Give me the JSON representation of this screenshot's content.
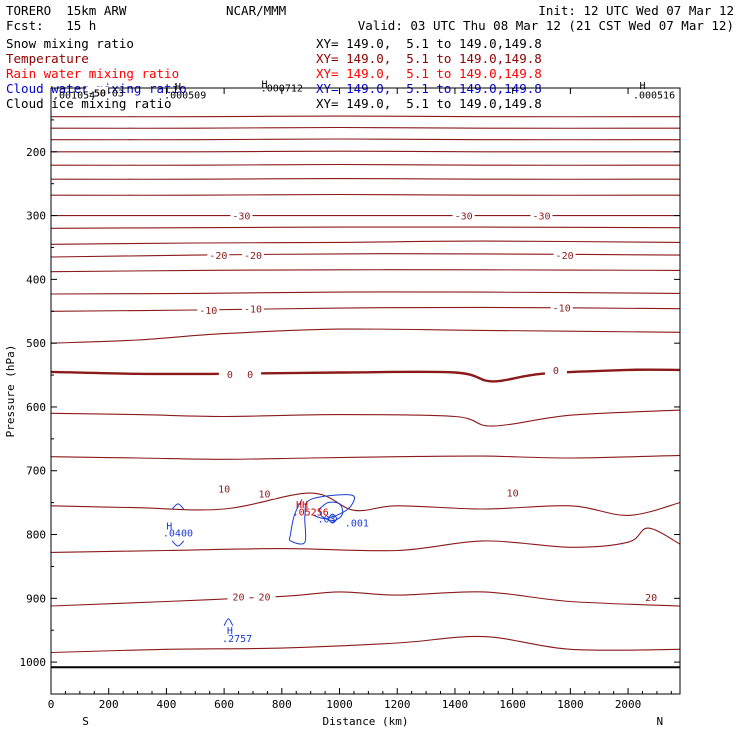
{
  "header": {
    "model": "TORERO  15km ARW",
    "fcst": "Fcst:   15 h",
    "center": "NCAR/MMM",
    "init": "Init: 12 UTC Wed 07 Mar 12",
    "valid": "Valid: 03 UTC Thu 08 Mar 12 (21 CST Wed 07 Mar 12)"
  },
  "fields": [
    {
      "name": "Snow mixing ratio",
      "xy": "XY= 149.0,  5.1 to 149.0,149.8",
      "color": "#000000"
    },
    {
      "name": "Temperature",
      "xy": "XY= 149.0,  5.1 to 149.0,149.8",
      "color": "#8b0000"
    },
    {
      "name": "Rain water mixing ratio",
      "xy": "XY= 149.0,  5.1 to 149.0,149.8",
      "color": "#ff0000"
    },
    {
      "name": "Cloud water mixing ratio",
      "xy": "XY= 149.0,  5.1 to 149.0,149.8",
      "color": "#0000cc"
    },
    {
      "name": "Cloud ice mixing ratio",
      "xy": "XY= 149.0,  5.1 to 149.0,149.8",
      "color": "#000000"
    }
  ],
  "colors": {
    "temperature": "#8b1a1a",
    "cloud_water": "#1a3cd6",
    "rain": "#d00000",
    "ground": "#000000"
  },
  "chart_data": {
    "type": "line",
    "title": "",
    "xlabel": "Distance (km)",
    "ylabel": "Pressure (hPa)",
    "xlim": [
      0,
      2180
    ],
    "ylim": [
      1050,
      100
    ],
    "x_ticks": [
      0,
      200,
      400,
      600,
      800,
      1000,
      1200,
      1400,
      1600,
      1800,
      2000
    ],
    "y_ticks": [
      200,
      300,
      400,
      500,
      600,
      700,
      800,
      900,
      1000
    ],
    "left_end_label": "S",
    "right_end_label": "N",
    "temperature_isotherms": [
      {
        "value": -50,
        "x": [
          0,
          500,
          1000,
          1500,
          2180
        ],
        "p": [
          145,
          145,
          144,
          145,
          145
        ]
      },
      {
        "value": -50,
        "x": [
          0,
          500,
          1000,
          1500,
          2180
        ],
        "p": [
          163,
          163,
          162,
          163,
          163
        ]
      },
      {
        "value": -50,
        "x": [
          0,
          500,
          1000,
          1500,
          2180
        ],
        "p": [
          181,
          181,
          180,
          181,
          181
        ]
      },
      {
        "value": -50,
        "x": [
          0,
          500,
          1000,
          1500,
          2180
        ],
        "p": [
          200,
          200,
          199,
          200,
          200
        ]
      },
      {
        "value": -40,
        "x": [
          0,
          500,
          1000,
          1500,
          2180
        ],
        "p": [
          221,
          221,
          220,
          221,
          221
        ]
      },
      {
        "value": -40,
        "x": [
          0,
          500,
          1000,
          1500,
          2180
        ],
        "p": [
          243,
          243,
          242,
          243,
          243
        ]
      },
      {
        "value": -40,
        "x": [
          0,
          500,
          1000,
          1500,
          2180
        ],
        "p": [
          268,
          268,
          267,
          268,
          268
        ]
      },
      {
        "value": -30,
        "x": [
          0,
          500,
          1000,
          1500,
          2180
        ],
        "p": [
          300,
          300,
          300,
          300,
          300
        ]
      },
      {
        "value": -30,
        "x": [
          0,
          500,
          1000,
          1500,
          2180
        ],
        "p": [
          320,
          319,
          318,
          318,
          319
        ]
      },
      {
        "value": -20,
        "x": [
          0,
          500,
          1000,
          1500,
          2180
        ],
        "p": [
          345,
          343,
          342,
          340,
          342
        ]
      },
      {
        "value": -20,
        "x": [
          0,
          500,
          1000,
          1500,
          2180
        ],
        "p": [
          365,
          362,
          360,
          360,
          362
        ]
      },
      {
        "value": -20,
        "x": [
          0,
          500,
          1000,
          1500,
          2180
        ],
        "p": [
          388,
          386,
          385,
          385,
          386
        ]
      },
      {
        "value": -10,
        "x": [
          0,
          500,
          1000,
          1500,
          2180
        ],
        "p": [
          423,
          422,
          420,
          420,
          422
        ]
      },
      {
        "value": -10,
        "x": [
          0,
          500,
          1000,
          1500,
          2180
        ],
        "p": [
          450,
          448,
          445,
          444,
          446
        ]
      },
      {
        "value": -10,
        "x": [
          0,
          300,
          600,
          1000,
          1500,
          2180
        ],
        "p": [
          500,
          495,
          485,
          478,
          480,
          483
        ]
      },
      {
        "value": 0,
        "x": [
          0,
          300,
          600,
          1000,
          1400,
          1530,
          1700,
          2000,
          2180
        ],
        "p": [
          545,
          548,
          548,
          546,
          546,
          560,
          548,
          542,
          542
        ]
      },
      {
        "value": 0,
        "x": [
          0,
          300,
          600,
          1000,
          1400,
          1530,
          1800,
          2180
        ],
        "p": [
          610,
          612,
          615,
          612,
          615,
          630,
          613,
          605
        ]
      },
      {
        "value": 10,
        "x": [
          0,
          300,
          600,
          900,
          1200,
          1500,
          1800,
          2180
        ],
        "p": [
          678,
          680,
          682,
          680,
          678,
          677,
          680,
          676
        ]
      },
      {
        "value": 10,
        "x": [
          0,
          300,
          600,
          900,
          1050,
          1200,
          1500,
          1800,
          2000,
          2180
        ],
        "p": [
          755,
          758,
          760,
          735,
          762,
          755,
          760,
          755,
          770,
          750
        ]
      },
      {
        "value": 20,
        "x": [
          0,
          400,
          800,
          1200,
          1500,
          1800,
          2000,
          2070,
          2180
        ],
        "p": [
          828,
          825,
          822,
          825,
          810,
          820,
          812,
          790,
          815
        ]
      },
      {
        "value": 20,
        "x": [
          0,
          400,
          800,
          1000,
          1200,
          1500,
          1800,
          2180
        ],
        "p": [
          912,
          905,
          897,
          890,
          895,
          890,
          905,
          912
        ]
      },
      {
        "value": 20,
        "x": [
          0,
          400,
          800,
          1200,
          1500,
          1800,
          2180
        ],
        "p": [
          985,
          980,
          978,
          970,
          960,
          980,
          980
        ]
      }
    ],
    "temperature_labels": [
      {
        "text": "-30",
        "x": 660,
        "p": 300
      },
      {
        "text": "-30",
        "x": 1430,
        "p": 300
      },
      {
        "text": "-30",
        "x": 1700,
        "p": 300
      },
      {
        "text": "-20",
        "x": 580,
        "p": 362
      },
      {
        "text": "-20",
        "x": 700,
        "p": 362
      },
      {
        "text": "-20",
        "x": 1780,
        "p": 362
      },
      {
        "text": "-10",
        "x": 545,
        "p": 448
      },
      {
        "text": "-10",
        "x": 700,
        "p": 446
      },
      {
        "text": "-10",
        "x": 1770,
        "p": 444
      },
      {
        "text": "0",
        "x": 620,
        "p": 548
      },
      {
        "text": "0",
        "x": 690,
        "p": 548
      },
      {
        "text": "0",
        "x": 1750,
        "p": 542
      },
      {
        "text": "10",
        "x": 600,
        "p": 728
      },
      {
        "text": "10",
        "x": 740,
        "p": 736
      },
      {
        "text": "10",
        "x": 1600,
        "p": 734
      },
      {
        "text": "20",
        "x": 650,
        "p": 897
      },
      {
        "text": "20",
        "x": 740,
        "p": 897
      },
      {
        "text": "20",
        "x": 2080,
        "p": 898
      },
      {
        "text": "-50",
        "x": 160,
        "p": 107
      }
    ],
    "cloud_water_labels": [
      {
        "text": "H",
        "x": 410,
        "p": 786
      },
      {
        "text": ".0400",
        "x": 440,
        "p": 797
      },
      {
        "text": "H",
        "x": 620,
        "p": 950
      },
      {
        "text": ".2757",
        "x": 645,
        "p": 962
      },
      {
        "text": ".001",
        "x": 1060,
        "p": 781
      },
      {
        "text": ".03",
        "x": 955,
        "p": 775
      }
    ],
    "rain_labels": [
      {
        "text": "HH",
        "x": 870,
        "p": 752
      },
      {
        "text": ".05256",
        "x": 900,
        "p": 764
      }
    ],
    "top_labels": [
      {
        "text": ".001054",
        "x": 80,
        "p": 110
      },
      {
        "text": ".000509",
        "x": 465,
        "p": 110
      },
      {
        "text": "H",
        "x": 440,
        "p": 97
      },
      {
        "text": ".000712",
        "x": 800,
        "p": 99
      },
      {
        "text": "H",
        "x": 740,
        "p": 93
      },
      {
        "text": "H",
        "x": 2050,
        "p": 95
      },
      {
        "text": ".000516",
        "x": 2090,
        "p": 110
      },
      {
        "text": "-50 03",
        "x": 190,
        "p": 107
      }
    ]
  }
}
